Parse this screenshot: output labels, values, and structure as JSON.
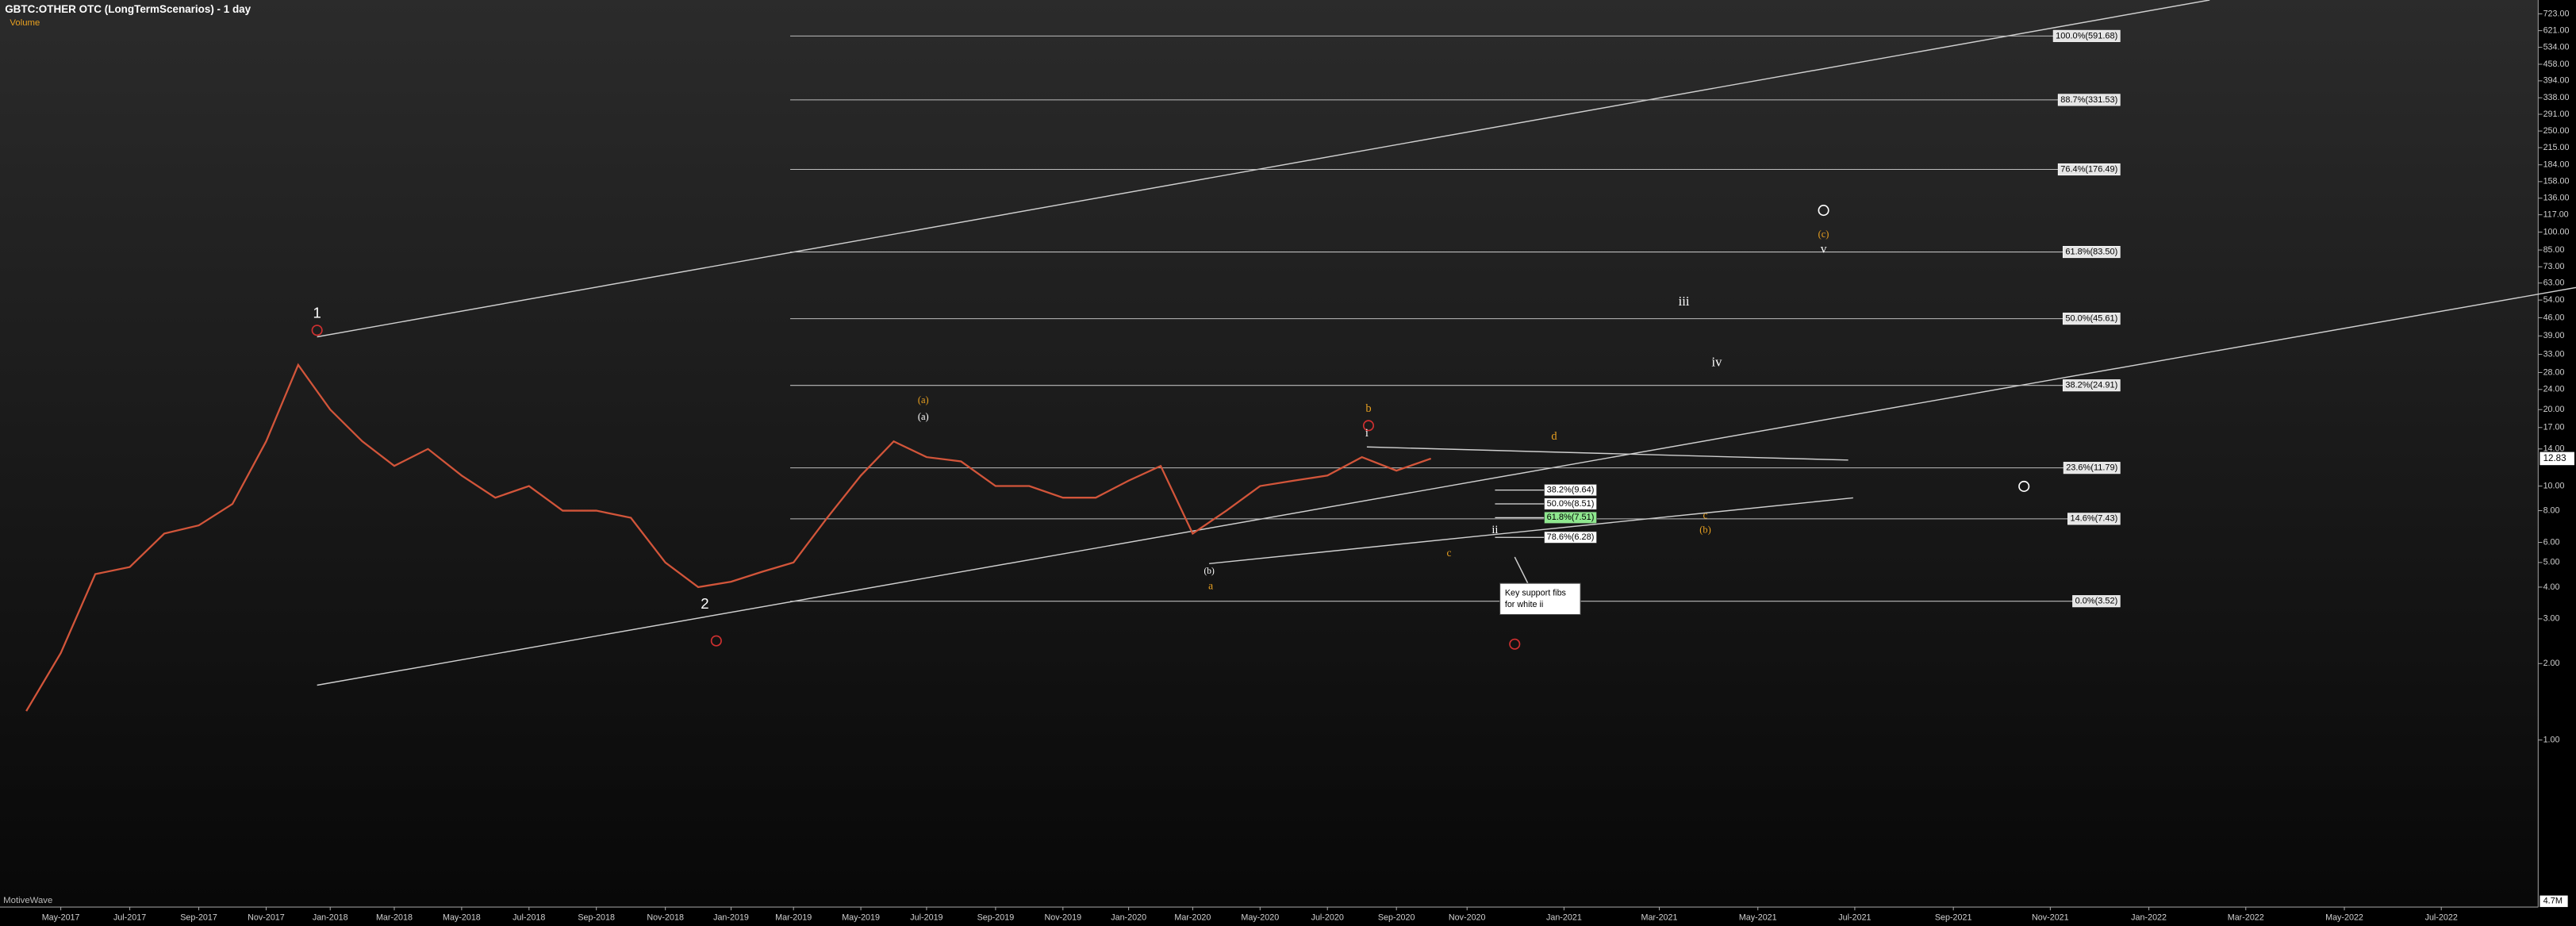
{
  "chart_data": {
    "type": "line",
    "title": "GBTC:OTHER OTC (LongTermScenarios) - 1 day",
    "subtitle": "Volume",
    "watermark": "MotiveWave",
    "categories": [
      "May-2017",
      "Jul-2017",
      "Sep-2017",
      "Nov-2017",
      "Jan-2018",
      "Mar-2018",
      "May-2018",
      "Jul-2018",
      "Sep-2018",
      "Nov-2018",
      "Jan-2019",
      "Mar-2019",
      "May-2019",
      "Jul-2019",
      "Sep-2019",
      "Nov-2019",
      "Jan-2020",
      "Mar-2020",
      "May-2020",
      "Jul-2020",
      "Sep-2020",
      "Nov-2020",
      "Jan-2021",
      "Mar-2021",
      "May-2021",
      "Jul-2021",
      "Sep-2021",
      "Nov-2021",
      "Jan-2022",
      "Mar-2022",
      "May-2022",
      "Jul-2022"
    ],
    "x": [
      "Apr-2017",
      "May-2017",
      "Jun-2017",
      "Jul-2017",
      "Aug-2017",
      "Sep-2017",
      "Oct-2017",
      "Nov-2017",
      "Dec-2017",
      "Jan-2018",
      "Feb-2018",
      "Mar-2018",
      "Apr-2018",
      "May-2018",
      "Jun-2018",
      "Jul-2018",
      "Aug-2018",
      "Sep-2018",
      "Oct-2018",
      "Nov-2018",
      "Dec-2018",
      "Jan-2019",
      "Feb-2019",
      "Mar-2019",
      "Apr-2019",
      "May-2019",
      "Jun-2019",
      "Jul-2019",
      "Aug-2019",
      "Sep-2019",
      "Oct-2019",
      "Nov-2019",
      "Dec-2019",
      "Jan-2020",
      "Feb-2020",
      "Mar-2020",
      "Apr-2020",
      "May-2020",
      "Jun-2020",
      "Jul-2020",
      "Aug-2020",
      "Sep-2020",
      "Oct-2020"
    ],
    "values": [
      1.3,
      2.2,
      4.5,
      4.8,
      6.5,
      7,
      8.5,
      15,
      30,
      20,
      15,
      12,
      14,
      11,
      9,
      10,
      8,
      8,
      7.5,
      5,
      4,
      4.2,
      4.6,
      5,
      7.5,
      11,
      15,
      13,
      12.5,
      10,
      10,
      9,
      9,
      10.5,
      12,
      6.5,
      8,
      10,
      10.5,
      11,
      13,
      11.5,
      12.83
    ],
    "color": "#d2553a",
    "log": true,
    "ylim": [
      0.22,
      820
    ],
    "yticks": [
      {
        "value": 723,
        "label": "723.00"
      },
      {
        "value": 621,
        "label": "621.00"
      },
      {
        "value": 534,
        "label": "534.00"
      },
      {
        "value": 458,
        "label": "458.00"
      },
      {
        "value": 394,
        "label": "394.00"
      },
      {
        "value": 338,
        "label": "338.00"
      },
      {
        "value": 291,
        "label": "291.00"
      },
      {
        "value": 250,
        "label": "250.00"
      },
      {
        "value": 215,
        "label": "215.00"
      },
      {
        "value": 184,
        "label": "184.00"
      },
      {
        "value": 158,
        "label": "158.00"
      },
      {
        "value": 136,
        "label": "136.00"
      },
      {
        "value": 117,
        "label": "117.00"
      },
      {
        "value": 100,
        "label": "100.00"
      },
      {
        "value": 85,
        "label": "85.00"
      },
      {
        "value": 73,
        "label": "73.00"
      },
      {
        "value": 63,
        "label": "63.00"
      },
      {
        "value": 54,
        "label": "54.00"
      },
      {
        "value": 46,
        "label": "46.00"
      },
      {
        "value": 39,
        "label": "39.00"
      },
      {
        "value": 33,
        "label": "33.00"
      },
      {
        "value": 28,
        "label": "28.00"
      },
      {
        "value": 24,
        "label": "24.00"
      },
      {
        "value": 20,
        "label": "20.00"
      },
      {
        "value": 17,
        "label": "17.00"
      },
      {
        "value": 14,
        "label": "14.00"
      },
      {
        "value": 10,
        "label": "10.00"
      },
      {
        "value": 8,
        "label": "8.00"
      },
      {
        "value": 6,
        "label": "6.00"
      },
      {
        "value": 5,
        "label": "5.00"
      },
      {
        "value": 4,
        "label": "4.00"
      },
      {
        "value": 3,
        "label": "3.00"
      },
      {
        "value": 2,
        "label": "2.00"
      },
      {
        "value": 1,
        "label": "1.00"
      }
    ],
    "last_price": 12.83,
    "volume_label": "4.7M",
    "fib_levels": [
      {
        "value": 591.68,
        "label": "100.0%(591.68)"
      },
      {
        "value": 331.53,
        "label": "88.7%(331.53)"
      },
      {
        "value": 176.49,
        "label": "76.4%(176.49)"
      },
      {
        "value": 83.5,
        "label": "61.8%(83.50)"
      },
      {
        "value": 45.61,
        "label": "50.0%(45.61)"
      },
      {
        "value": 24.91,
        "label": "38.2%(24.91)"
      },
      {
        "value": 11.79,
        "label": "23.6%(11.79)"
      },
      {
        "value": 7.43,
        "label": "14.6%(7.43)"
      },
      {
        "value": 3.52,
        "label": "0.0%(3.52)"
      }
    ],
    "support_fibs": [
      {
        "value": 9.64,
        "label": "38.2%(9.64)",
        "color": "#ffffff"
      },
      {
        "value": 8.51,
        "label": "50.0%(8.51)",
        "color": "#ffffff"
      },
      {
        "value": 7.51,
        "label": "61.8%(7.51)",
        "color": "#8fe88f"
      },
      {
        "value": 6.28,
        "label": "78.6%(6.28)",
        "color": "#ffffff"
      }
    ],
    "note": [
      "Key support fibs",
      "for white ii"
    ],
    "annotations": [
      {
        "text": "1",
        "color": "#ffffff"
      },
      {
        "text": "2",
        "color": "#ffffff"
      },
      {
        "text": "(a)",
        "color": "#e8a020"
      },
      {
        "text": "(a)",
        "color": "#ffffff"
      },
      {
        "text": "(b)",
        "color": "#ffffff"
      },
      {
        "text": "a",
        "color": "#e8a020"
      },
      {
        "text": "b",
        "color": "#e8a020"
      },
      {
        "text": "i",
        "color": "#ffffff"
      },
      {
        "text": "c",
        "color": "#e8a020"
      },
      {
        "text": "d",
        "color": "#e8a020"
      },
      {
        "text": "ii",
        "color": "#ffffff"
      },
      {
        "text": "iii",
        "color": "#ffffff"
      },
      {
        "text": "iv",
        "color": "#ffffff"
      },
      {
        "text": "v",
        "color": "#ffffff"
      },
      {
        "text": "(c)",
        "color": "#e8a020"
      },
      {
        "text": "c",
        "color": "#e8a020"
      },
      {
        "text": "(b)",
        "color": "#e8a020"
      }
    ]
  }
}
